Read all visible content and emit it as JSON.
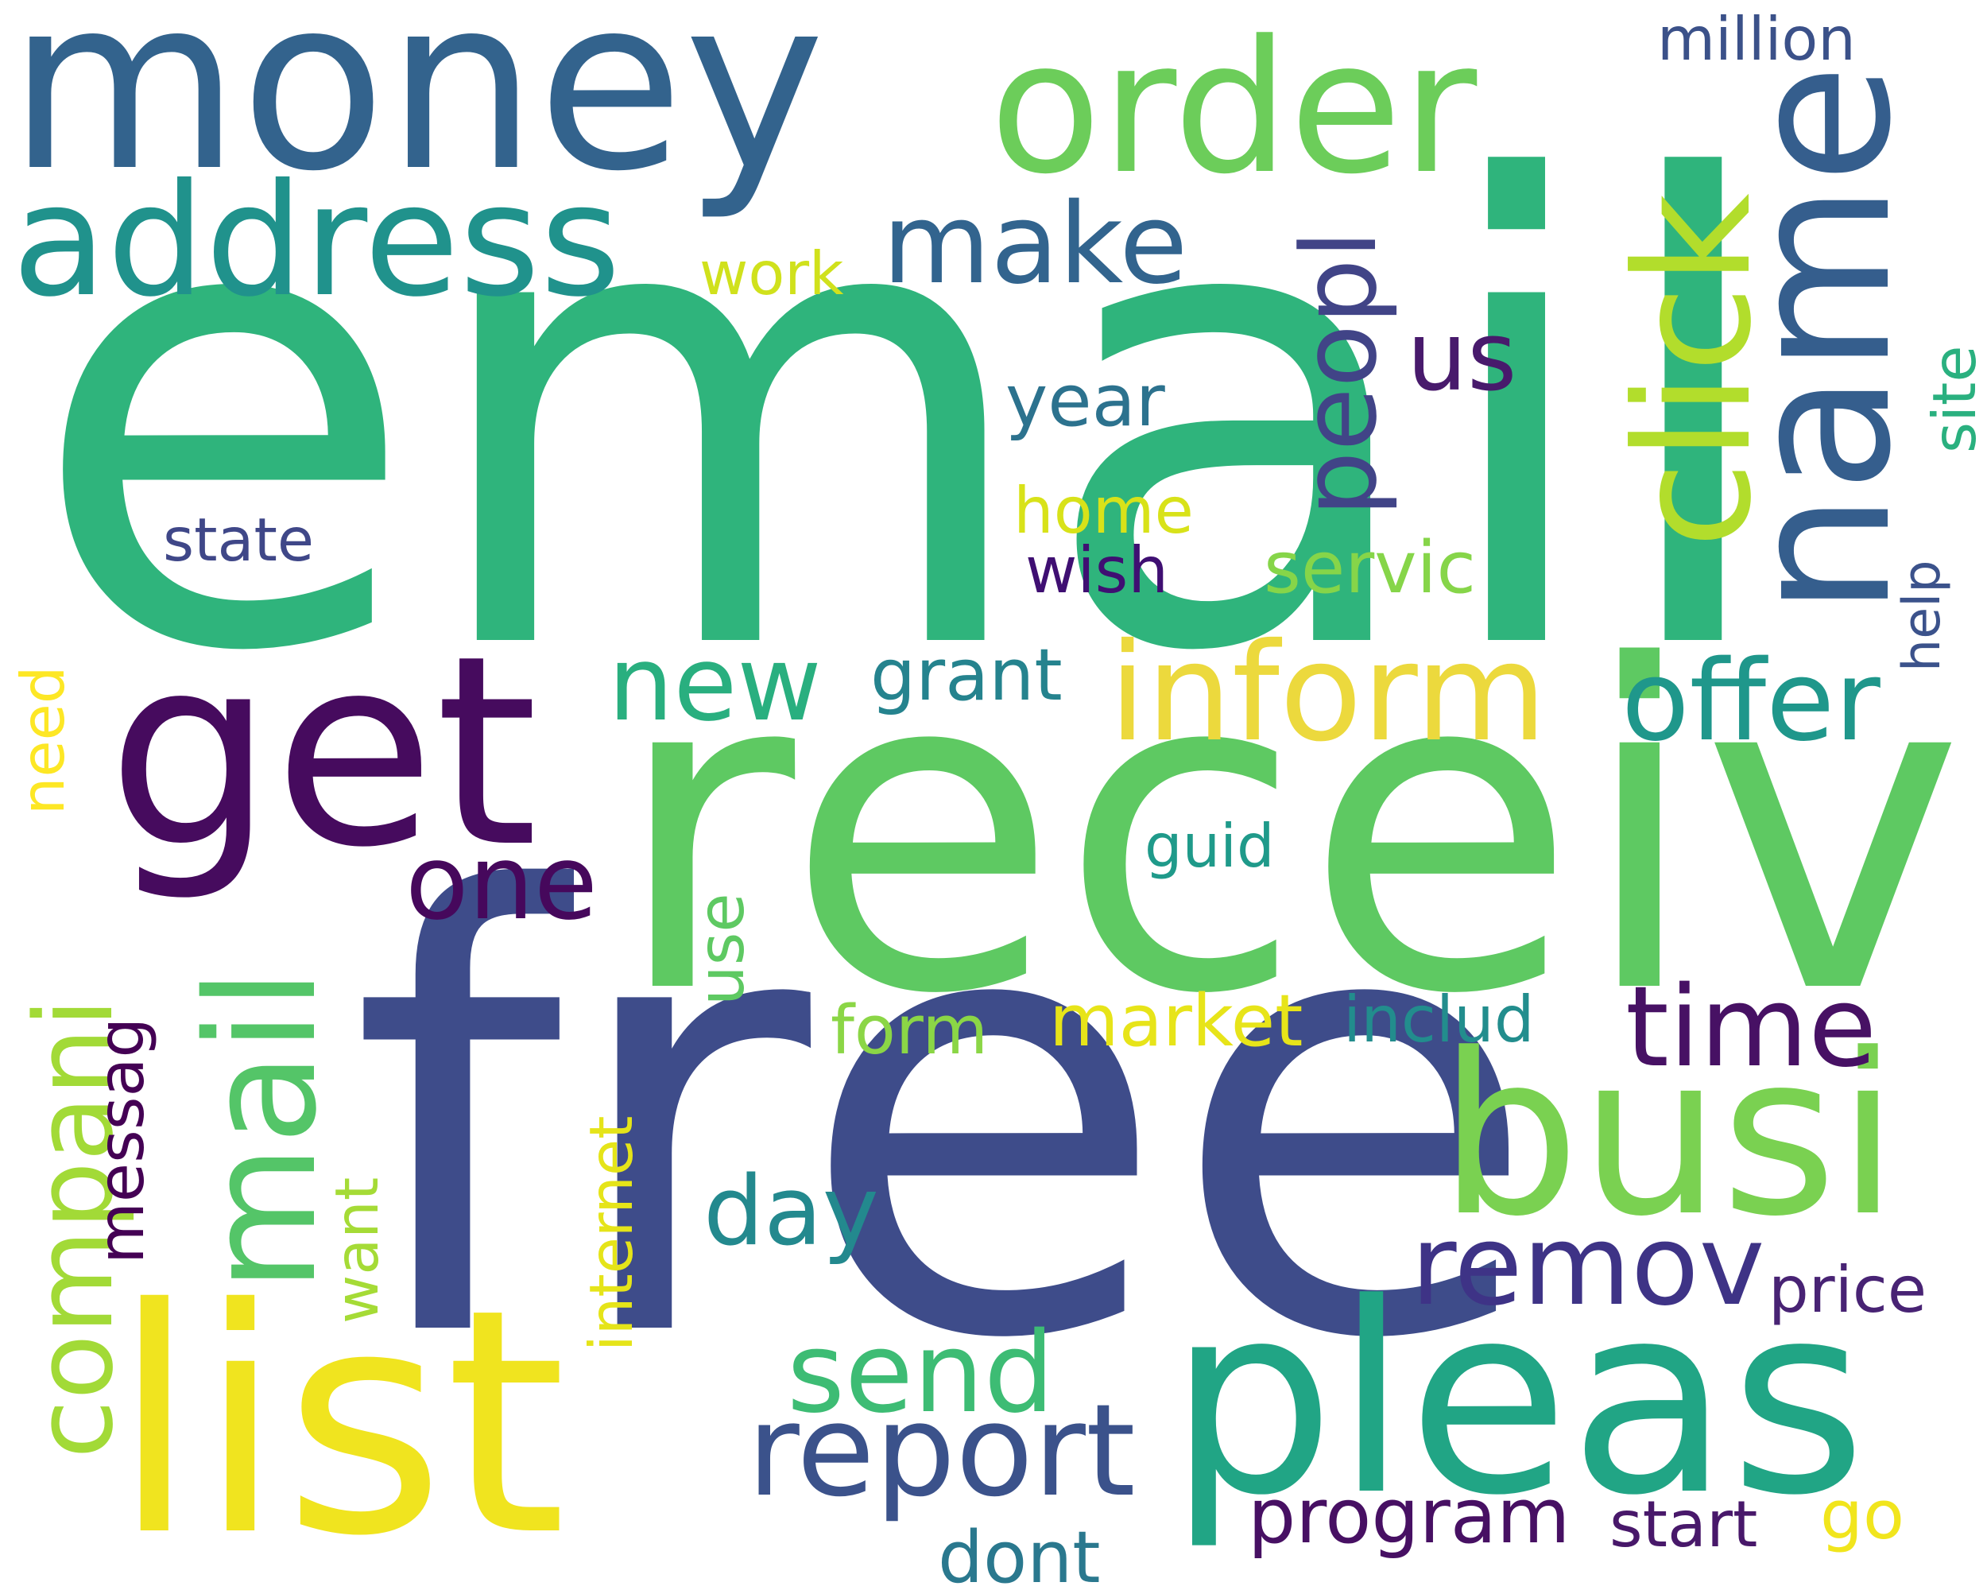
{
  "words": [
    {
      "text": "email",
      "color": "#2fb47c",
      "rotate": false
    },
    {
      "text": "free",
      "color": "#3e4c8a",
      "rotate": false
    },
    {
      "text": "receiv",
      "color": "#5ec962",
      "rotate": false
    },
    {
      "text": "money",
      "color": "#33638d",
      "rotate": false
    },
    {
      "text": "list",
      "color": "#f0e41f",
      "rotate": false
    },
    {
      "text": "get",
      "color": "#460b5e",
      "rotate": false
    },
    {
      "text": "pleas",
      "color": "#21a585",
      "rotate": false
    },
    {
      "text": "busi",
      "color": "#7ad151",
      "rotate": false
    },
    {
      "text": "name",
      "color": "#355e8d",
      "rotate": true
    },
    {
      "text": "order",
      "color": "#6ccd5a",
      "rotate": false
    },
    {
      "text": "address",
      "color": "#20928c",
      "rotate": false
    },
    {
      "text": "click",
      "color": "#b2dd2c",
      "rotate": true
    },
    {
      "text": "mail",
      "color": "#54c568",
      "rotate": true
    },
    {
      "text": "inform",
      "color": "#ecd93d",
      "rotate": false
    },
    {
      "text": "report",
      "color": "#3b528b",
      "rotate": false
    },
    {
      "text": "remov",
      "color": "#3e3386",
      "rotate": false
    },
    {
      "text": "offer",
      "color": "#1f978b",
      "rotate": false
    },
    {
      "text": "compani",
      "color": "#a2da37",
      "rotate": true
    },
    {
      "text": "send",
      "color": "#3dbc74",
      "rotate": false
    },
    {
      "text": "time",
      "color": "#471164",
      "rotate": false
    },
    {
      "text": "make",
      "color": "#32648e",
      "rotate": false
    },
    {
      "text": "peopl",
      "color": "#414487",
      "rotate": true
    },
    {
      "text": "new",
      "color": "#29af7f",
      "rotate": false
    },
    {
      "text": "one",
      "color": "#46085c",
      "rotate": false
    },
    {
      "text": "program",
      "color": "#471063",
      "rotate": false
    },
    {
      "text": "day",
      "color": "#23898e",
      "rotate": false
    },
    {
      "text": "us",
      "color": "#481a6c",
      "rotate": false
    },
    {
      "text": "market",
      "color": "#e7e419",
      "rotate": false
    },
    {
      "text": "servic",
      "color": "#86d549",
      "rotate": false
    },
    {
      "text": "price",
      "color": "#482374",
      "rotate": false
    },
    {
      "text": "start",
      "color": "#48186a",
      "rotate": false
    },
    {
      "text": "grant",
      "color": "#25838e",
      "rotate": false
    },
    {
      "text": "includ",
      "color": "#228d8d",
      "rotate": false
    },
    {
      "text": "form",
      "color": "#8bd646",
      "rotate": false
    },
    {
      "text": "dont",
      "color": "#2a788e",
      "rotate": false
    },
    {
      "text": "year",
      "color": "#2c728e",
      "rotate": false
    },
    {
      "text": "wish",
      "color": "#3f0f72",
      "rotate": false
    },
    {
      "text": "home",
      "color": "#d8e219",
      "rotate": false
    },
    {
      "text": "work",
      "color": "#d0e11c",
      "rotate": false
    },
    {
      "text": "million",
      "color": "#3b5189",
      "rotate": false
    },
    {
      "text": "state",
      "color": "#3f4788",
      "rotate": false
    },
    {
      "text": "site",
      "color": "#2ab07f",
      "rotate": true
    },
    {
      "text": "go",
      "color": "#f1e51d",
      "rotate": false
    },
    {
      "text": "help",
      "color": "#3b528b",
      "rotate": true
    },
    {
      "text": "guid",
      "color": "#1f9a8a",
      "rotate": false
    },
    {
      "text": "messag",
      "color": "#440154",
      "rotate": true
    },
    {
      "text": "internet",
      "color": "#e5e419",
      "rotate": true
    },
    {
      "text": "need",
      "color": "#fde725",
      "rotate": true
    },
    {
      "text": "want",
      "color": "#a5db36",
      "rotate": true
    },
    {
      "text": "use",
      "color": "#5ec962",
      "rotate": true
    }
  ]
}
